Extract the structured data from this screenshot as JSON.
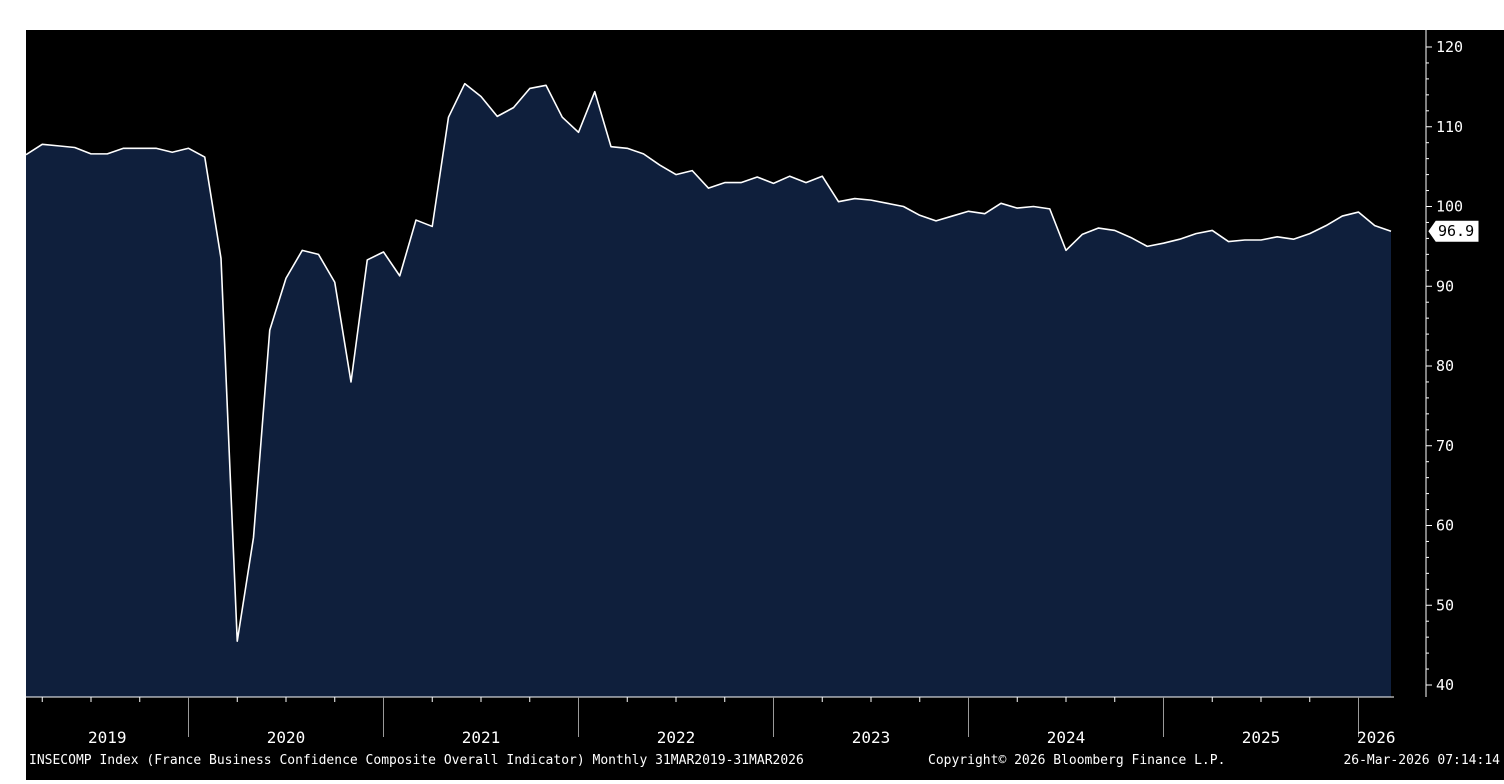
{
  "chart_data": {
    "type": "area",
    "title": "",
    "xlabel": "",
    "ylabel": "",
    "ylim": [
      39,
      122
    ],
    "y_ticks": [
      40,
      50,
      60,
      70,
      80,
      90,
      100,
      110,
      120
    ],
    "y_axis_side": "right",
    "year_labels": [
      "2019",
      "2020",
      "2021",
      "2022",
      "2023",
      "2024",
      "2025",
      "2026"
    ],
    "last_value_label": "96.9",
    "grid": false,
    "legend": "none",
    "series": [
      {
        "x": [
          "2019-03",
          "2019-04",
          "2019-05",
          "2019-06",
          "2019-07",
          "2019-08",
          "2019-09",
          "2019-10",
          "2019-11",
          "2019-12",
          "2020-01",
          "2020-02",
          "2020-03",
          "2020-04",
          "2020-05",
          "2020-06",
          "2020-07",
          "2020-08",
          "2020-09",
          "2020-10",
          "2020-11",
          "2020-12",
          "2021-01",
          "2021-02",
          "2021-03",
          "2021-04",
          "2021-05",
          "2021-06",
          "2021-07",
          "2021-08",
          "2021-09",
          "2021-10",
          "2021-11",
          "2021-12",
          "2022-01",
          "2022-02",
          "2022-03",
          "2022-04",
          "2022-05",
          "2022-06",
          "2022-07",
          "2022-08",
          "2022-09",
          "2022-10",
          "2022-11",
          "2022-12",
          "2023-01",
          "2023-02",
          "2023-03",
          "2023-04",
          "2023-05",
          "2023-06",
          "2023-07",
          "2023-08",
          "2023-09",
          "2023-10",
          "2023-11",
          "2023-12",
          "2024-01",
          "2024-02",
          "2024-03",
          "2024-04",
          "2024-05",
          "2024-06",
          "2024-07",
          "2024-08",
          "2024-09",
          "2024-10",
          "2024-11",
          "2024-12",
          "2025-01",
          "2025-02",
          "2025-03",
          "2025-04",
          "2025-05",
          "2025-06",
          "2025-07",
          "2025-08",
          "2025-09",
          "2025-10",
          "2025-11",
          "2025-12",
          "2026-01",
          "2026-02",
          "2026-03"
        ],
        "values": [
          106.5,
          107.8,
          107.6,
          107.4,
          106.6,
          106.6,
          107.3,
          107.3,
          107.3,
          106.8,
          107.3,
          106.2,
          93.5,
          45.5,
          58.5,
          84.5,
          91.0,
          94.5,
          94.0,
          90.5,
          78.0,
          93.3,
          94.3,
          91.3,
          98.3,
          97.5,
          111.2,
          115.4,
          113.8,
          111.3,
          112.4,
          114.8,
          115.2,
          111.2,
          109.3,
          114.4,
          107.5,
          107.3,
          106.6,
          105.2,
          104.0,
          104.5,
          102.3,
          103.0,
          103.0,
          103.7,
          102.9,
          103.8,
          103.0,
          103.8,
          100.6,
          101.0,
          100.8,
          100.4,
          100.0,
          98.9,
          98.2,
          98.8,
          99.4,
          99.1,
          100.4,
          99.8,
          100.0,
          99.7,
          94.5,
          96.5,
          97.3,
          97.0,
          96.1,
          95.0,
          95.4,
          95.9,
          96.6,
          97.0,
          95.6,
          95.8,
          95.8,
          96.2,
          95.9,
          96.6,
          97.6,
          98.8,
          99.3,
          97.6,
          96.9
        ]
      }
    ],
    "colors": {
      "background": "#000000",
      "fill": "#0f1f3c",
      "line": "#ffffff",
      "axis": "#ffffff"
    }
  },
  "footer": {
    "description": "INSECOMP Index (France Business Confidence Composite Overall Indicator) Monthly 31MAR2019-31MAR2026",
    "copyright": "Copyright© 2026 Bloomberg Finance L.P.",
    "timestamp": "26-Mar-2026 07:14:14"
  }
}
